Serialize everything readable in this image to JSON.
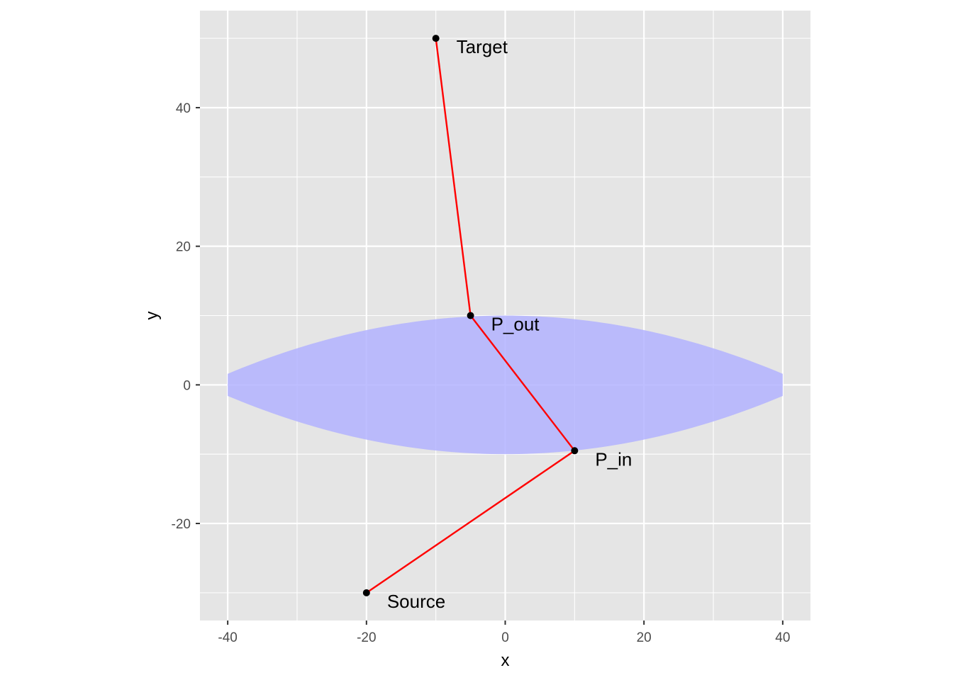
{
  "chart_data": {
    "type": "scatter",
    "title": "",
    "xlabel": "x",
    "ylabel": "y",
    "xlim": [
      -44,
      44
    ],
    "ylim": [
      -34,
      54
    ],
    "x_ticks": [
      -40,
      -20,
      0,
      20,
      40
    ],
    "y_ticks": [
      -20,
      0,
      20,
      40
    ],
    "x_tick_labels": [
      "-40",
      "-20",
      "0",
      "20",
      "40"
    ],
    "y_tick_labels": [
      "-20",
      "0",
      "20",
      "40"
    ],
    "grid": true,
    "lens": {
      "x_range": [
        -40,
        40
      ],
      "half_thickness_center": 10,
      "half_thickness_edge": 1.6,
      "fill_color": "#b3b3ff"
    },
    "ray_path": {
      "color": "#ff0000",
      "points": [
        {
          "name": "Source",
          "x": -20,
          "y": -30
        },
        {
          "name": "P_in",
          "x": 10,
          "y": -9.5
        },
        {
          "name": "P_out",
          "x": -5,
          "y": 10
        },
        {
          "name": "Target",
          "x": -10,
          "y": 50
        }
      ]
    },
    "colors": {
      "panel_background": "#e5e5e5",
      "grid": "#ffffff",
      "point": "#000000"
    }
  }
}
